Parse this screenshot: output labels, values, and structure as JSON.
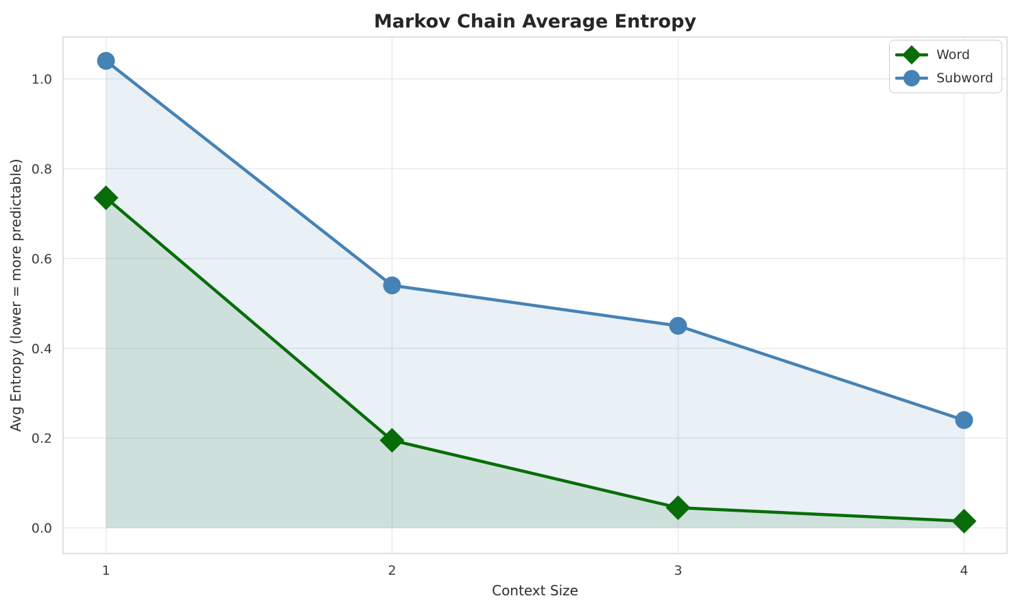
{
  "chart_data": {
    "type": "line",
    "title": "Markov Chain Average Entropy",
    "xlabel": "Context Size",
    "ylabel": "Avg Entropy (lower = more predictable)",
    "x": [
      1,
      2,
      3,
      4
    ],
    "series": [
      {
        "name": "Word",
        "values": [
          0.735,
          0.195,
          0.045,
          0.015
        ],
        "color": "#086d08",
        "marker": "diamond"
      },
      {
        "name": "Subword",
        "values": [
          1.04,
          0.54,
          0.45,
          0.24
        ],
        "color": "#4682b4",
        "marker": "circle"
      }
    ],
    "x_tick_labels": [
      "1",
      "2",
      "3",
      "4"
    ],
    "y_tick_labels": [
      "0.0",
      "0.2",
      "0.4",
      "0.6",
      "0.8",
      "1.0"
    ],
    "xlim": [
      0.85,
      4.15
    ],
    "ylim": [
      -0.057,
      1.093
    ],
    "grid": true,
    "legend_position": "upper right",
    "area_fill": true,
    "fill_baseline": 0,
    "fill_opacity": 0.12,
    "line_width": 4.5,
    "colors": {
      "grid": "#e8e8e8",
      "spine": "#d9d9d9",
      "tick_text": "#3a3a3a",
      "label_text": "#2e2e2e",
      "title_text": "#262626"
    }
  }
}
